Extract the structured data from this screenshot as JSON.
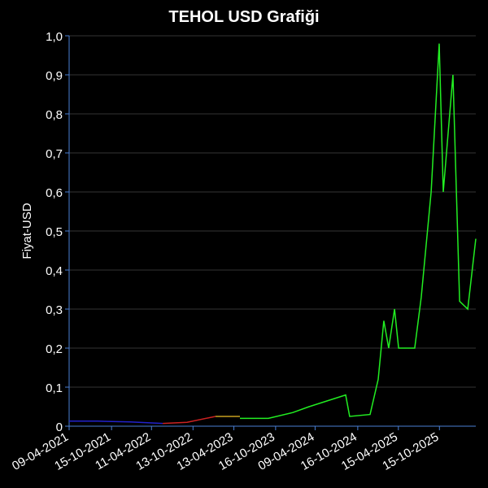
{
  "chart_data": {
    "type": "line",
    "title": "TEHOL USD Grafiği",
    "ylabel": "Fiyat-USD",
    "xlim": [
      "09-04-2021",
      "26-03-2026"
    ],
    "xticks": [
      "09-04-2021",
      "15-10-2021",
      "11-04-2022",
      "13-10-2022",
      "13-04-2023",
      "16-10-2023",
      "09-04-2024",
      "16-10-2024",
      "15-04-2025",
      "15-10-2025"
    ],
    "ylim": [
      0,
      1
    ],
    "yticks": [
      0,
      {
        "value": 0.1,
        "label": "0,1"
      },
      {
        "value": 0.2,
        "label": "0,2"
      },
      {
        "value": 0.3,
        "label": "0,3"
      },
      {
        "value": 0.4,
        "label": "0,4"
      },
      {
        "value": 0.5,
        "label": "0,5"
      },
      {
        "value": 0.6,
        "label": "0,6"
      },
      {
        "value": 0.7,
        "label": "0,7"
      },
      {
        "value": 0.8,
        "label": "0,8"
      },
      {
        "value": 0.9,
        "label": "0,9"
      },
      {
        "value": 1,
        "label": "1,0"
      }
    ],
    "grid": true,
    "series": [
      {
        "color": "#2222cc",
        "x": [
          "09-04-2021",
          "14-08-2021",
          "06-01-2022",
          "31-05-2022"
        ],
        "values": [
          0.013,
          0.013,
          0.011,
          0.007
        ]
      },
      {
        "color": "#cc2222",
        "x": [
          "31-05-2022",
          "16-09-2022",
          "21-01-2023"
        ],
        "values": [
          0.007,
          0.01,
          0.025
        ]
      },
      {
        "color": "#c8a020",
        "x": [
          "21-01-2023",
          "10-05-2023"
        ],
        "values": [
          0.025,
          0.025
        ]
      },
      {
        "color": "#22ee22",
        "x": [
          "10-05-2023",
          "14-09-2023",
          "01-01-2024",
          "13-03-2024",
          "23-08-2024",
          "10-09-2024",
          "10-12-2024",
          "15-01-2025",
          "09-02-2025",
          "03-03-2025",
          "29-03-2025",
          "16-04-2025",
          "27-06-2025",
          "26-07-2025",
          "08-09-2025",
          "14-10-2025",
          "01-11-2025",
          "14-12-2025",
          "13-01-2026",
          "18-02-2026",
          "26-03-2026"
        ],
        "values": [
          0.02,
          0.02,
          0.035,
          0.05,
          0.08,
          0.025,
          0.03,
          0.12,
          0.27,
          0.2,
          0.3,
          0.2,
          0.2,
          0.33,
          0.6,
          0.98,
          0.6,
          0.9,
          0.32,
          0.3,
          0.48
        ]
      }
    ]
  }
}
